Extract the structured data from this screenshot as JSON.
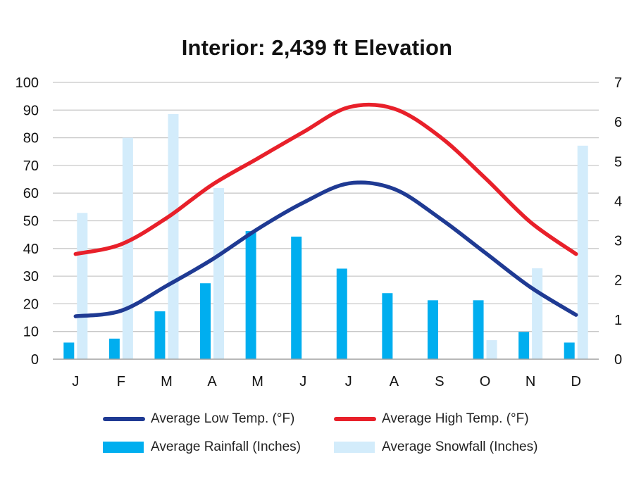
{
  "chart_data": {
    "type": "bar",
    "title": "Interior: 2,439 ft Elevation",
    "categories": [
      "J",
      "F",
      "M",
      "A",
      "M",
      "J",
      "J",
      "A",
      "S",
      "O",
      "N",
      "D"
    ],
    "y_left": {
      "ylim": [
        0,
        100
      ],
      "ticks": [
        0,
        10,
        20,
        30,
        40,
        50,
        60,
        70,
        80,
        90,
        100
      ],
      "label": ""
    },
    "y_right": {
      "ylim": [
        0,
        7
      ],
      "ticks": [
        0,
        1,
        2,
        3,
        4,
        5,
        6,
        7
      ],
      "label": ""
    },
    "grid": true,
    "legend_position": "bottom",
    "series": [
      {
        "name": "Average Low Temp. (°F)",
        "kind": "line",
        "axis": "left",
        "color": "#1f3a93",
        "values": [
          15.5,
          17.5,
          26.5,
          36,
          47,
          56.5,
          63.5,
          61.5,
          51,
          38.5,
          26,
          16
        ]
      },
      {
        "name": "Average High Temp. (°F)",
        "kind": "line",
        "axis": "left",
        "color": "#e8202a",
        "values": [
          38,
          41.5,
          51,
          63,
          72.5,
          82,
          91,
          90.5,
          80.5,
          65.5,
          49.5,
          38
        ]
      },
      {
        "name": "Average Rainfall (Inches)",
        "kind": "bar",
        "axis": "right",
        "color": "#00aeef",
        "values": [
          0.42,
          0.52,
          1.21,
          1.92,
          3.24,
          3.1,
          2.29,
          1.67,
          1.49,
          1.49,
          0.69,
          0.42
        ]
      },
      {
        "name": "Average Snowfall (Inches)",
        "kind": "bar",
        "axis": "right",
        "color": "#d3ecfb",
        "values": [
          3.7,
          5.6,
          6.2,
          4.33,
          0,
          0,
          0,
          0,
          0,
          0.48,
          2.3,
          5.4
        ]
      }
    ]
  }
}
